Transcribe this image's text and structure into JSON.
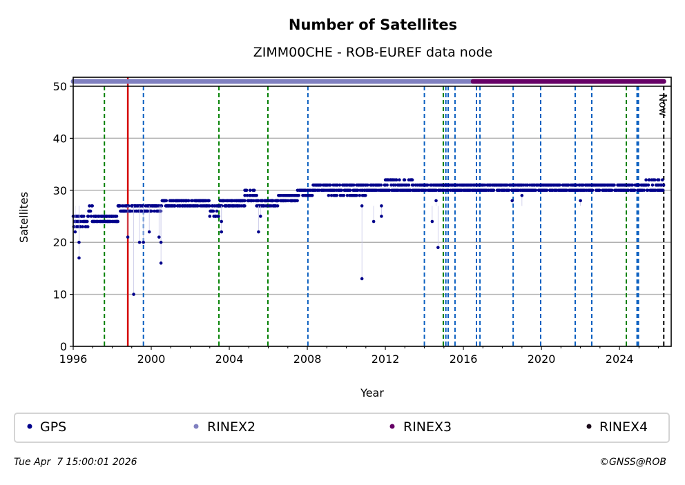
{
  "chart_data": {
    "type": "scatter",
    "title": "Number of Satellites",
    "subtitle": "ZIMM00CHE - ROB-EUREF data node",
    "xlabel": "Year",
    "ylabel": "Satellites",
    "xlim": [
      1996,
      2026.65
    ],
    "ylim": [
      0,
      50
    ],
    "x_ticks": [
      "1996",
      "2000",
      "2004",
      "2008",
      "2012",
      "2016",
      "2020",
      "2024"
    ],
    "y_ticks": [
      "0",
      "10",
      "20",
      "30",
      "40",
      "50"
    ],
    "grid": "horizontal",
    "now_label": "Now",
    "now_year": 2026.27,
    "colors": {
      "gps": "#00008b",
      "rinex2": "#8080c0",
      "rinex3": "#660066",
      "rinex4": "#1a0a1a",
      "green": "#008000",
      "blue": "#0a5fc0",
      "red": "#d40000",
      "now": "#000000"
    },
    "series": [
      {
        "name": "GPS",
        "levels": [
          [
            1996.0,
            1996.8,
            23,
            25
          ],
          [
            1996.8,
            1997.0,
            24,
            27
          ],
          [
            1997.0,
            1998.3,
            24,
            25
          ],
          [
            1998.3,
            2000.5,
            26,
            27
          ],
          [
            2000.5,
            2003.0,
            27,
            28
          ],
          [
            2003.0,
            2003.5,
            25,
            27
          ],
          [
            2003.5,
            2004.8,
            27,
            28
          ],
          [
            2004.8,
            2005.4,
            28,
            30
          ],
          [
            2005.4,
            2006.5,
            27,
            28
          ],
          [
            2006.5,
            2007.5,
            28,
            29
          ],
          [
            2007.5,
            2008.3,
            29,
            30
          ],
          [
            2008.3,
            2009.0,
            30,
            31
          ],
          [
            2009.0,
            2011.0,
            29,
            31
          ],
          [
            2011.0,
            2012.0,
            30,
            31
          ],
          [
            2012.0,
            2013.5,
            30,
            32
          ],
          [
            2013.5,
            2025.3,
            30,
            31
          ],
          [
            2025.3,
            2026.27,
            30,
            32
          ]
        ],
        "outliers": [
          [
            1996.3,
            17
          ],
          [
            1996.3,
            20
          ],
          [
            1996.1,
            22
          ],
          [
            1998.8,
            21
          ],
          [
            1999.1,
            10
          ],
          [
            1999.4,
            20
          ],
          [
            1999.6,
            20
          ],
          [
            1999.9,
            22
          ],
          [
            2000.5,
            16
          ],
          [
            2000.5,
            20
          ],
          [
            2000.4,
            21
          ],
          [
            2003.6,
            22
          ],
          [
            2003.6,
            24
          ],
          [
            2005.5,
            22
          ],
          [
            2005.6,
            25
          ],
          [
            2010.8,
            13
          ],
          [
            2010.8,
            27
          ],
          [
            2011.4,
            24
          ],
          [
            2011.8,
            25
          ],
          [
            2011.8,
            27
          ],
          [
            2014.4,
            24
          ],
          [
            2014.7,
            19
          ],
          [
            2014.6,
            28
          ],
          [
            2018.5,
            28
          ],
          [
            2022.0,
            28
          ],
          [
            2019.0,
            29
          ]
        ]
      },
      {
        "name": "RINEX2",
        "range": [
          1996.0,
          2016.5
        ],
        "value": 51
      },
      {
        "name": "RINEX3",
        "range": [
          2016.5,
          2026.27
        ],
        "value": 51
      },
      {
        "name": "RINEX4",
        "range": [],
        "value": 51
      }
    ],
    "events": {
      "green_dashed": [
        1997.6,
        2003.47,
        2005.98,
        2014.97,
        2024.35
      ],
      "red_solid": [
        1998.8
      ],
      "blue_dashed": [
        1999.6,
        2008.03,
        2014.0,
        2015.1,
        2015.22,
        2015.57,
        2016.67,
        2016.85,
        2018.55,
        2019.96,
        2021.73,
        2022.58,
        2024.9,
        2024.97
      ]
    },
    "legend": {
      "placement": "below",
      "entries": [
        "GPS",
        "RINEX2",
        "RINEX3",
        "RINEX4"
      ]
    }
  },
  "footer": {
    "timestamp": "Tue Apr  7 15:00:01 2026",
    "copyright": "©GNSS@ROB"
  }
}
